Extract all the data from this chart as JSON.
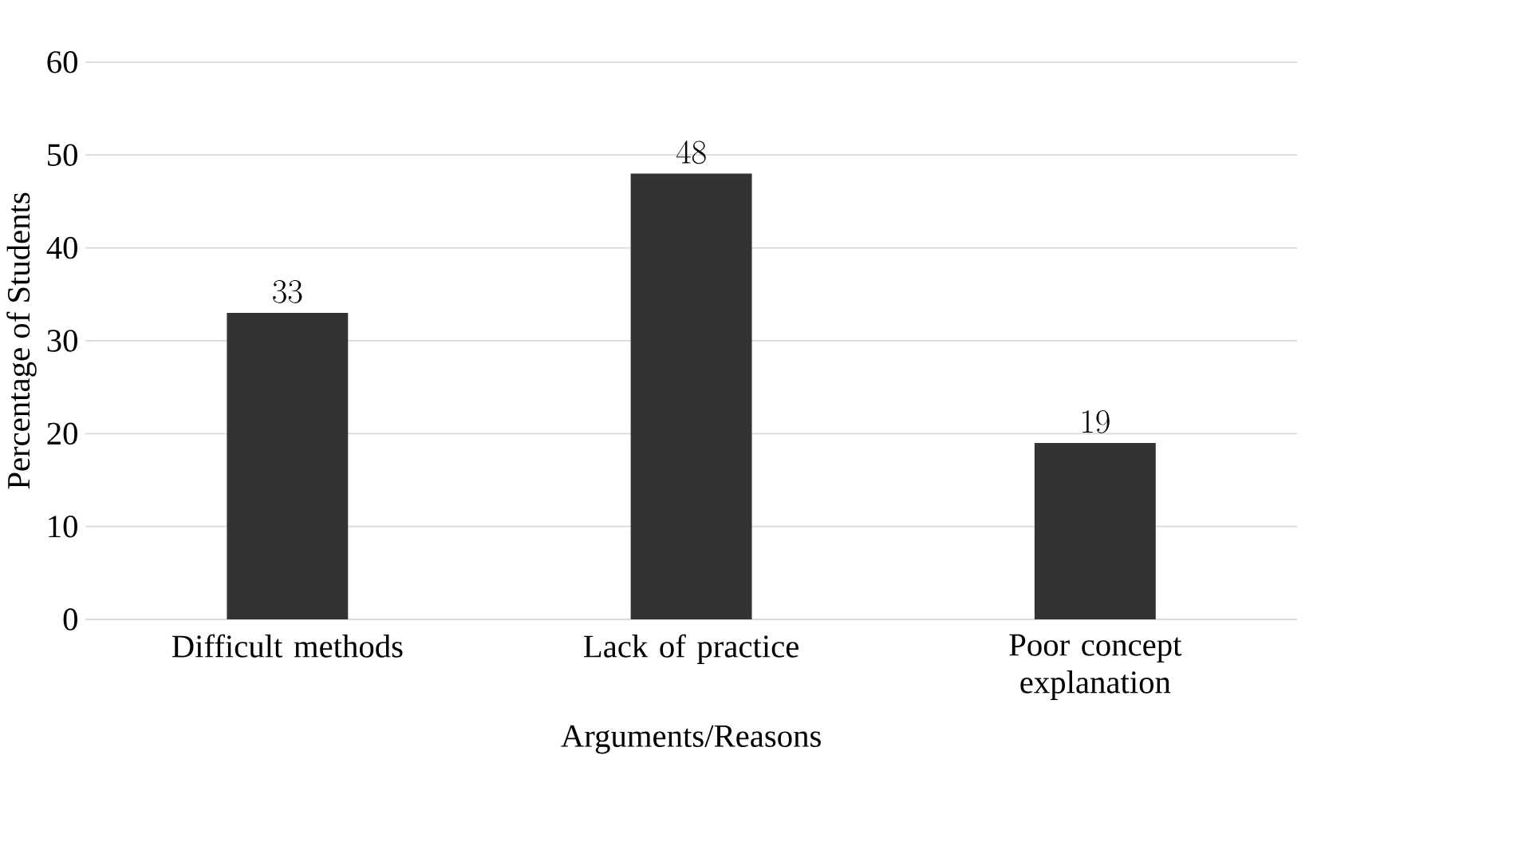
{
  "chart_data": {
    "type": "bar",
    "xlabel": "Arguments/Reasons",
    "ylabel": "Percentage of Students",
    "categories": [
      "Difficult methods",
      "Lack of practice",
      "Poor concept explanation"
    ],
    "values": [
      33,
      48,
      19
    ],
    "color": "#333333",
    "ylim": [
      0,
      60
    ],
    "yticks": [
      0,
      10,
      20,
      30,
      40,
      50,
      60
    ],
    "grid": "y",
    "data_labels": true
  }
}
